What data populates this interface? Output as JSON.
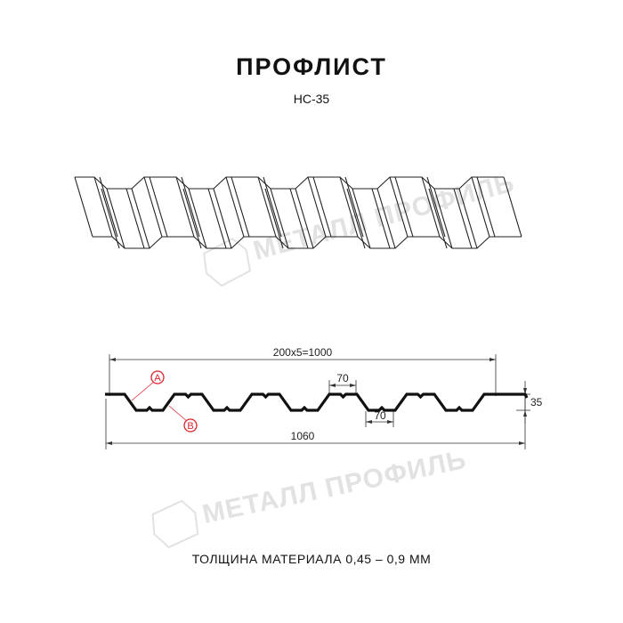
{
  "title": "ПРОФЛИСТ",
  "subtitle": "НС-35",
  "footer": "ТОЛЩИНА МАТЕРИАЛА 0,45 – 0,9 ММ",
  "watermark": "МЕТАЛЛ ПРОФИЛЬ",
  "dimensions": {
    "pitch_total": "200x5=1000",
    "crest_width": "70",
    "trough_width": "70",
    "height": "35",
    "full_width": "1060"
  },
  "callouts": {
    "a": "A",
    "b": "B"
  },
  "colors": {
    "line": "#1a1a1a",
    "callout": "#d9232d",
    "watermark": "#e2e2e2"
  }
}
